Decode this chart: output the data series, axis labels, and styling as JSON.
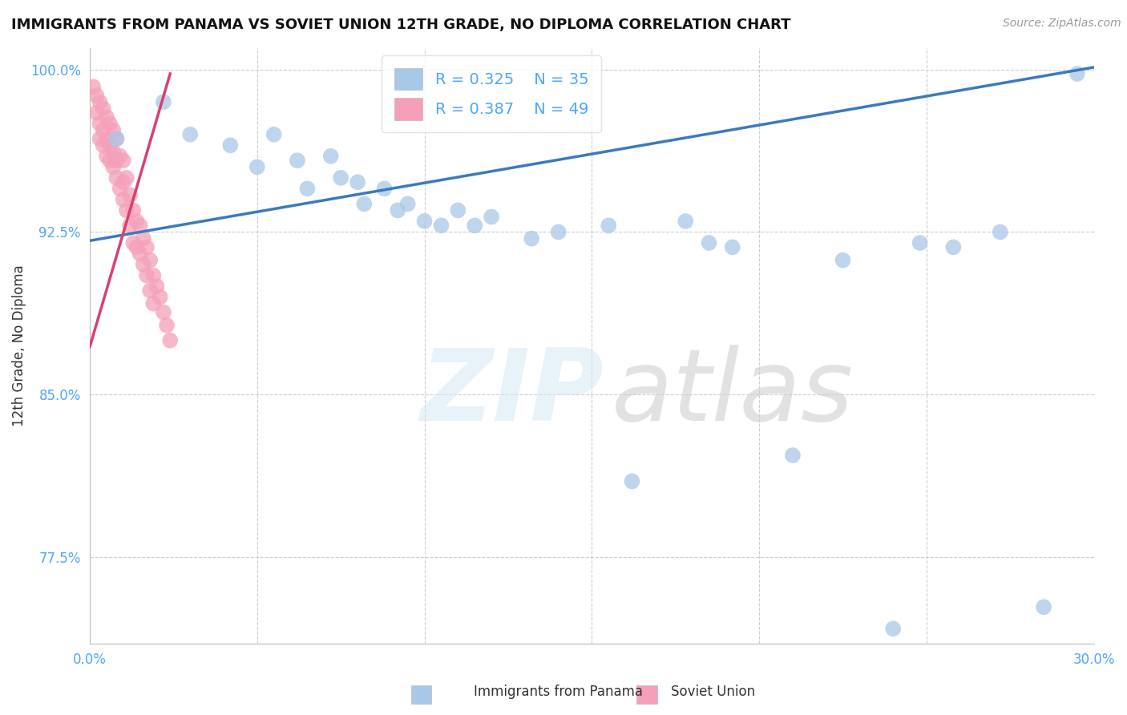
{
  "title": "IMMIGRANTS FROM PANAMA VS SOVIET UNION 12TH GRADE, NO DIPLOMA CORRELATION CHART",
  "source": "Source: ZipAtlas.com",
  "xlabel_panama": "Immigrants from Panama",
  "xlabel_soviet": "Soviet Union",
  "ylabel": "12th Grade, No Diploma",
  "xlim": [
    0.0,
    0.3
  ],
  "ylim": [
    0.735,
    1.01
  ],
  "xticks": [
    0.0,
    0.05,
    0.1,
    0.15,
    0.2,
    0.25,
    0.3
  ],
  "xticklabels": [
    "0.0%",
    "",
    "",
    "",
    "",
    "",
    "30.0%"
  ],
  "yticks": [
    0.775,
    0.85,
    0.925,
    1.0
  ],
  "yticklabels": [
    "77.5%",
    "85.0%",
    "92.5%",
    "100.0%"
  ],
  "panama_color": "#a8c8e8",
  "soviet_color": "#f4a0b8",
  "panama_line_color": "#3a7abf",
  "soviet_line_color": "#d94070",
  "R_panama": 0.325,
  "N_panama": 35,
  "R_soviet": 0.387,
  "N_soviet": 49,
  "background_color": "#ffffff",
  "grid_color": "#c8c8c8",
  "title_color": "#111111",
  "tick_color": "#4da6ff",
  "panama_x": [
    0.008,
    0.022,
    0.03,
    0.042,
    0.05,
    0.055,
    0.062,
    0.065,
    0.072,
    0.075,
    0.08,
    0.082,
    0.088,
    0.092,
    0.095,
    0.1,
    0.105,
    0.11,
    0.115,
    0.12,
    0.132,
    0.14,
    0.155,
    0.162,
    0.178,
    0.185,
    0.192,
    0.21,
    0.225,
    0.24,
    0.248,
    0.258,
    0.272,
    0.285,
    0.295
  ],
  "panama_y": [
    0.968,
    0.985,
    0.97,
    0.965,
    0.955,
    0.97,
    0.958,
    0.945,
    0.96,
    0.95,
    0.948,
    0.938,
    0.945,
    0.935,
    0.938,
    0.93,
    0.928,
    0.935,
    0.928,
    0.932,
    0.922,
    0.925,
    0.928,
    0.81,
    0.93,
    0.92,
    0.918,
    0.822,
    0.912,
    0.742,
    0.92,
    0.918,
    0.925,
    0.752,
    0.998
  ],
  "soviet_x": [
    0.001,
    0.002,
    0.002,
    0.003,
    0.003,
    0.003,
    0.004,
    0.004,
    0.004,
    0.005,
    0.005,
    0.005,
    0.006,
    0.006,
    0.006,
    0.007,
    0.007,
    0.007,
    0.008,
    0.008,
    0.008,
    0.009,
    0.009,
    0.01,
    0.01,
    0.01,
    0.011,
    0.011,
    0.012,
    0.012,
    0.013,
    0.013,
    0.014,
    0.014,
    0.015,
    0.015,
    0.016,
    0.016,
    0.017,
    0.017,
    0.018,
    0.018,
    0.019,
    0.019,
    0.02,
    0.021,
    0.022,
    0.023,
    0.024
  ],
  "soviet_y": [
    0.992,
    0.988,
    0.98,
    0.985,
    0.975,
    0.968,
    0.982,
    0.972,
    0.965,
    0.978,
    0.968,
    0.96,
    0.975,
    0.965,
    0.958,
    0.972,
    0.962,
    0.955,
    0.968,
    0.958,
    0.95,
    0.96,
    0.945,
    0.958,
    0.948,
    0.94,
    0.95,
    0.935,
    0.942,
    0.928,
    0.935,
    0.92,
    0.93,
    0.918,
    0.928,
    0.915,
    0.922,
    0.91,
    0.918,
    0.905,
    0.912,
    0.898,
    0.905,
    0.892,
    0.9,
    0.895,
    0.888,
    0.882,
    0.875
  ],
  "panama_line_x0": 0.0,
  "panama_line_y0": 0.921,
  "panama_line_x1": 0.3,
  "panama_line_y1": 1.001,
  "soviet_line_x0": 0.0,
  "soviet_line_y0": 0.872,
  "soviet_line_x1": 0.024,
  "soviet_line_y1": 0.998
}
